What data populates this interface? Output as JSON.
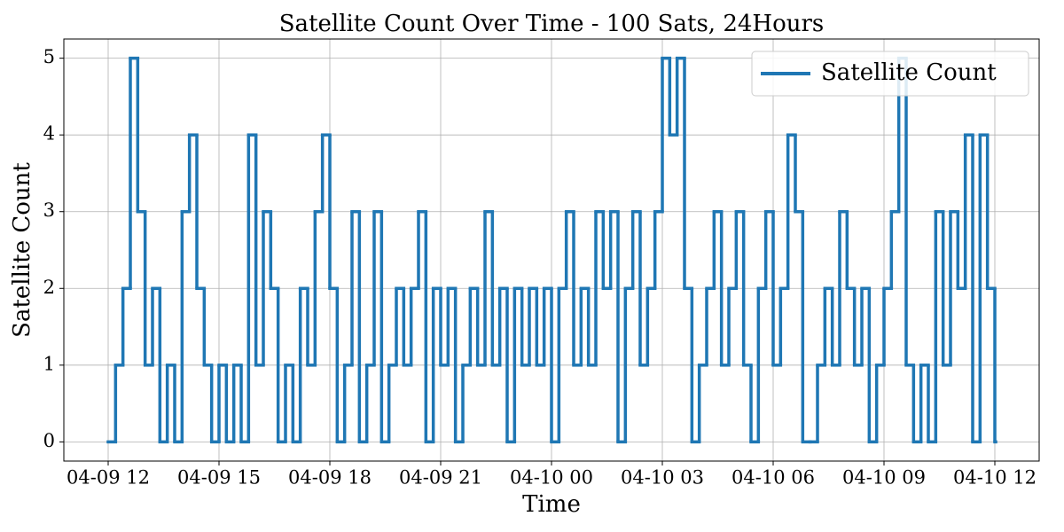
{
  "chart_data": {
    "type": "step",
    "title": "Satellite Count Over Time - 100 Sats, 24Hours",
    "x_label": "Time",
    "y_label": "Satellite Count",
    "x": [
      0,
      0.2,
      0.4,
      0.6,
      0.8,
      1,
      1.2,
      1.4,
      1.6,
      1.8,
      2,
      2.2,
      2.4,
      2.6,
      2.8,
      3,
      3.2,
      3.4,
      3.6,
      3.8,
      4,
      4.2,
      4.4,
      4.6,
      4.8,
      5,
      5.2,
      5.4,
      5.6,
      5.8,
      6,
      6.2,
      6.4,
      6.6,
      6.8,
      7,
      7.2,
      7.4,
      7.6,
      7.8,
      8,
      8.2,
      8.4,
      8.6,
      8.8,
      9,
      9.2,
      9.4,
      9.6,
      9.8,
      10,
      10.2,
      10.4,
      10.6,
      10.8,
      11,
      11.2,
      11.4,
      11.6,
      11.8,
      12,
      12.2,
      12.4,
      12.6,
      12.8,
      13,
      13.2,
      13.4,
      13.6,
      13.8,
      14,
      14.2,
      14.4,
      14.6,
      14.8,
      15,
      15.2,
      15.4,
      15.6,
      15.8,
      16,
      16.2,
      16.4,
      16.6,
      16.8,
      17,
      17.2,
      17.4,
      17.6,
      17.8,
      18,
      18.2,
      18.4,
      18.6,
      18.8,
      19,
      19.2,
      19.4,
      19.6,
      19.8,
      20,
      20.2,
      20.4,
      20.6,
      20.8,
      21,
      21.2,
      21.4,
      21.6,
      21.8,
      22,
      22.2,
      22.4,
      22.6,
      22.8,
      23,
      23.2,
      23.4,
      23.6,
      23.8,
      24
    ],
    "series": [
      {
        "name": "Satellite Count",
        "color": "#1f77b4",
        "values": [
          0,
          1,
          2,
          5,
          3,
          1,
          2,
          0,
          1,
          0,
          3,
          4,
          2,
          1,
          0,
          1,
          0,
          1,
          0,
          4,
          1,
          3,
          2,
          0,
          1,
          0,
          2,
          1,
          3,
          4,
          2,
          0,
          1,
          3,
          0,
          1,
          3,
          0,
          1,
          2,
          1,
          2,
          3,
          0,
          2,
          1,
          2,
          0,
          1,
          2,
          1,
          3,
          1,
          2,
          0,
          2,
          1,
          2,
          1,
          2,
          0,
          2,
          3,
          1,
          2,
          1,
          3,
          2,
          3,
          0,
          2,
          3,
          1,
          2,
          3,
          5,
          4,
          5,
          2,
          0,
          1,
          2,
          3,
          1,
          2,
          3,
          1,
          0,
          2,
          3,
          1,
          2,
          4,
          3,
          0,
          0,
          1,
          2,
          1,
          3,
          2,
          1,
          2,
          0,
          1,
          2,
          3,
          5,
          1,
          0,
          1,
          0,
          3,
          1,
          3,
          2,
          4,
          0,
          4,
          2,
          0
        ]
      }
    ],
    "xlim": [
      -1.2,
      25.2
    ],
    "xticks": [
      {
        "value": 0,
        "label": "04-09 12"
      },
      {
        "value": 3,
        "label": "04-09 15"
      },
      {
        "value": 6,
        "label": "04-09 18"
      },
      {
        "value": 9,
        "label": "04-09 21"
      },
      {
        "value": 12,
        "label": "04-10 00"
      },
      {
        "value": 15,
        "label": "04-10 03"
      },
      {
        "value": 18,
        "label": "04-10 06"
      },
      {
        "value": 21,
        "label": "04-10 09"
      },
      {
        "value": 24,
        "label": "04-10 12"
      }
    ],
    "ylim": [
      -0.25,
      5.25
    ],
    "yticks": [
      0,
      1,
      2,
      3,
      4,
      5
    ],
    "grid": true,
    "legend": "upper right"
  }
}
